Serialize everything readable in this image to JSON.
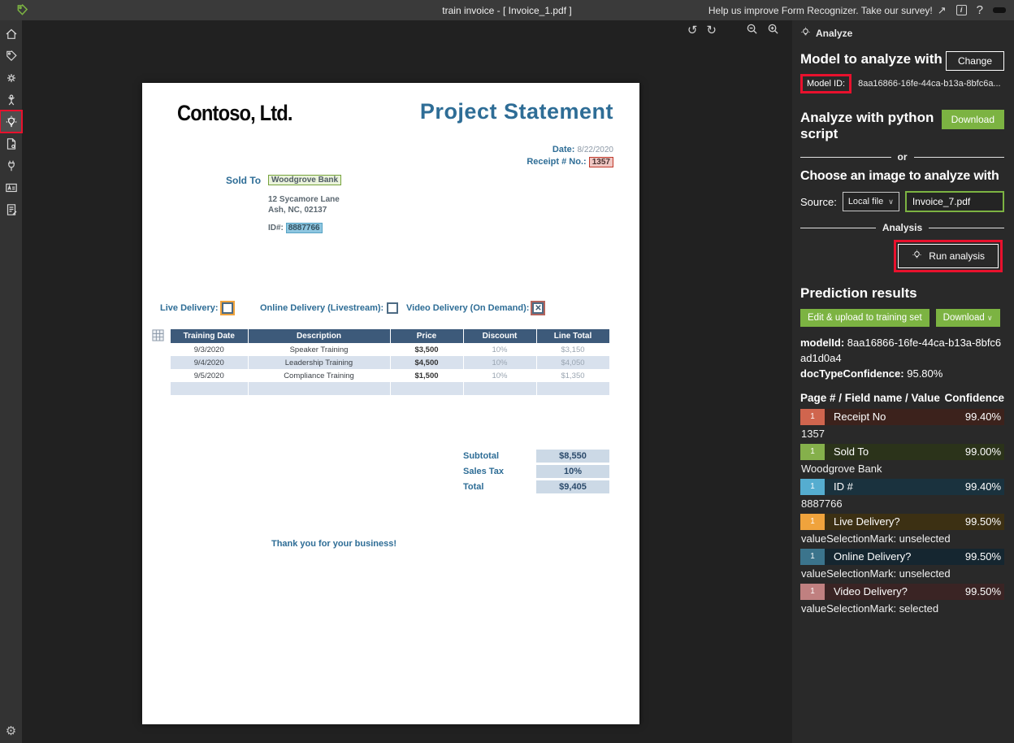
{
  "topbar": {
    "title": "train invoice - [ Invoice_1.pdf ]",
    "survey_text": "Help us improve Form Recognizer. Take our survey!"
  },
  "sidebar": {
    "icons": [
      "home-icon",
      "tag-icon",
      "train-icon",
      "model-compose-icon",
      "analyze-icon",
      "prebuilt-analyze-icon",
      "connections-icon",
      "text-recognition-icon",
      "layout-analyze-icon",
      "settings-gear-icon"
    ],
    "selected": "analyze-icon"
  },
  "canvas_toolbar": {
    "icons": [
      "rotate-counterclockwise-icon",
      "rotate-clockwise-icon",
      "zoom-out-icon",
      "zoom-in-icon"
    ]
  },
  "document": {
    "company": "Contoso, Ltd.",
    "title": "Project Statement",
    "date_label": "Date:",
    "date_value": "8/22/2020",
    "receipt_label": "Receipt # No.:",
    "receipt_value": "1357",
    "sold_to_label": "Sold To",
    "sold_to_value": "Woodgrove Bank",
    "address_line1": "12 Sycamore Lane",
    "address_line2": "Ash, NC, 02137",
    "id_label": "ID#:",
    "id_value": "8887766",
    "checkboxes": [
      {
        "label": "Live Delivery:",
        "checked": false,
        "highlight": "#f0a33c"
      },
      {
        "label": "Online Delivery (Livestream):",
        "checked": false,
        "highlight": "#4d6b84"
      },
      {
        "label": "Video Delivery (On Demand):",
        "checked": true,
        "highlight": "#b4645c"
      }
    ],
    "table": {
      "headers": [
        "Training Date",
        "Description",
        "Price",
        "Discount",
        "Line Total"
      ],
      "rows": [
        [
          "9/3/2020",
          "Speaker Training",
          "$3,500",
          "10%",
          "$3,150"
        ],
        [
          "9/4/2020",
          "Leadership Training",
          "$4,500",
          "10%",
          "$4,050"
        ],
        [
          "9/5/2020",
          "Compliance Training",
          "$1,500",
          "10%",
          "$1,350"
        ],
        [
          "",
          "",
          "",
          "",
          ""
        ]
      ]
    },
    "totals": [
      {
        "label": "Subtotal",
        "value": "$8,550"
      },
      {
        "label": "Sales Tax",
        "value": "10%"
      },
      {
        "label": "Total",
        "value": "$9,405"
      }
    ],
    "footer": "Thank you for your business!"
  },
  "panel": {
    "tab_label": "Analyze",
    "model_section": {
      "heading": "Model to analyze with",
      "change_button": "Change",
      "model_id_label": "Model ID:",
      "model_id_value": "8aa16866-16fe-44ca-b13a-8bfc6a..."
    },
    "python_section": {
      "heading": "Analyze with python script",
      "download_button": "Download"
    },
    "or_divider": "or",
    "choose_section": {
      "heading": "Choose an image to analyze with",
      "source_label": "Source:",
      "source_value": "Local file",
      "file_value": "Invoice_7.pdf"
    },
    "analysis_divider": "Analysis",
    "run_button": "Run analysis",
    "results": {
      "heading": "Prediction results",
      "edit_button": "Edit & upload to training set",
      "download_button": "Download",
      "model_id_label": "modelId:",
      "model_id_value": "8aa16866-16fe-44ca-b13a-8bfc6ad1d0a4",
      "doc_conf_label": "docTypeConfidence:",
      "doc_conf_value": "95.80%",
      "table_header_left": "Page # / Field name / Value",
      "table_header_right": "Confidence",
      "fields": [
        {
          "page": "1",
          "name": "Receipt No",
          "confidence": "99.40%",
          "value": "1357",
          "badge_color": "#d0654e",
          "row_color": "#3c221c"
        },
        {
          "page": "1",
          "name": "Sold To",
          "confidence": "99.00%",
          "value": "Woodgrove Bank",
          "badge_color": "#85b04b",
          "row_color": "#2b331a"
        },
        {
          "page": "1",
          "name": "ID #",
          "confidence": "99.40%",
          "value": "8887766",
          "badge_color": "#55add0",
          "row_color": "#1a323e"
        },
        {
          "page": "1",
          "name": "Live Delivery?",
          "confidence": "99.50%",
          "value": "valueSelectionMark: unselected",
          "badge_color": "#f0a33c",
          "row_color": "#3c3013"
        },
        {
          "page": "1",
          "name": "Online Delivery?",
          "confidence": "99.50%",
          "value": "valueSelectionMark: unselected",
          "badge_color": "#3b748c",
          "row_color": "#152630"
        },
        {
          "page": "1",
          "name": "Video Delivery?",
          "confidence": "99.50%",
          "value": "valueSelectionMark: selected",
          "badge_color": "#c08080",
          "row_color": "#3a2424"
        }
      ]
    }
  },
  "colors": {
    "annotation_red": "#e8112d",
    "accent_green": "#7cb342",
    "doc_blue": "#2e6d96",
    "table_header": "#3d5a7a"
  }
}
